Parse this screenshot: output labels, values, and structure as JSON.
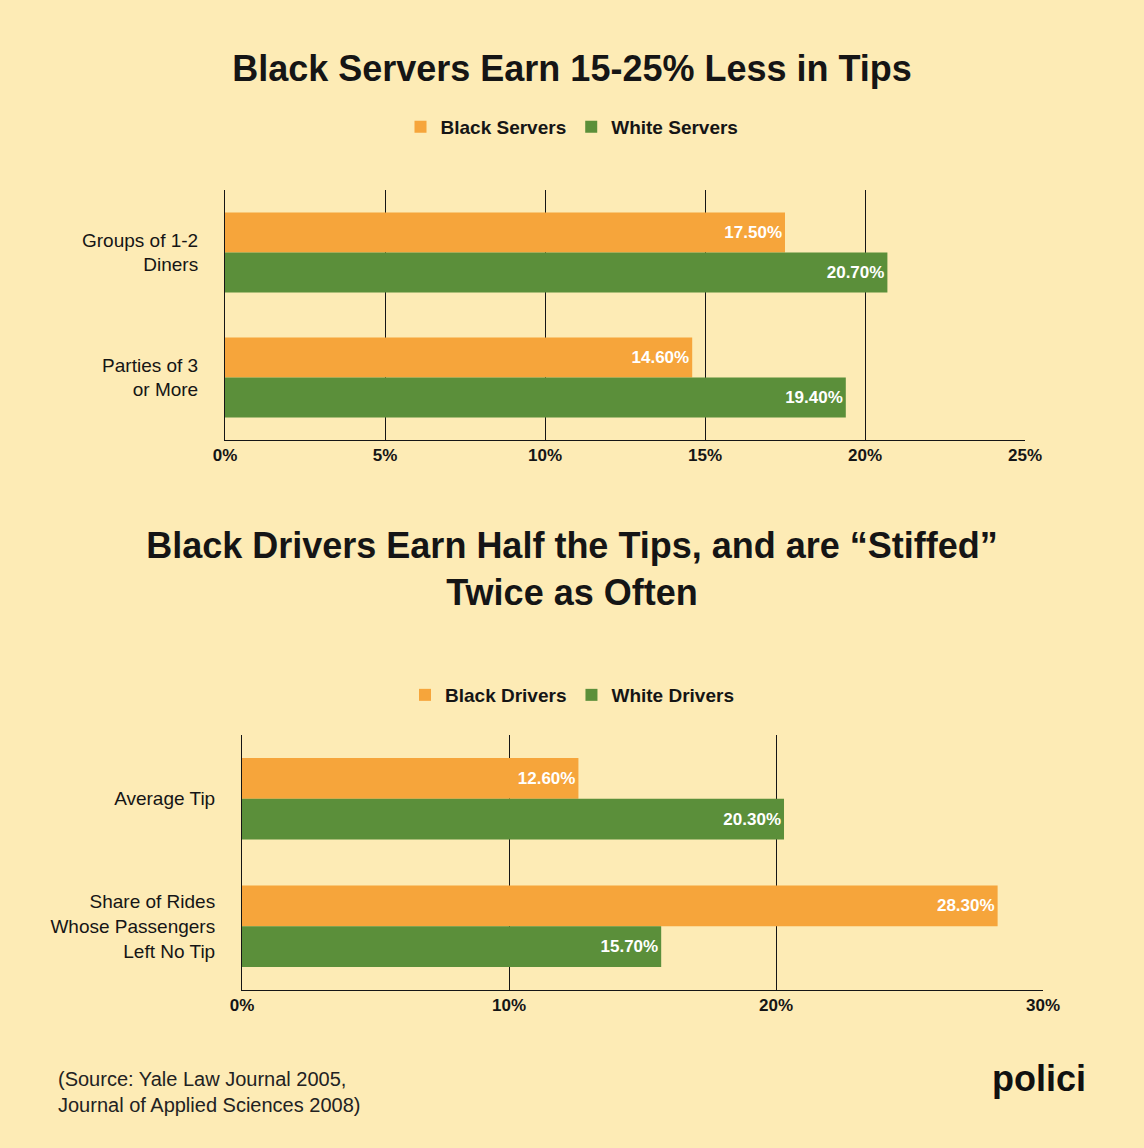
{
  "chart_data": [
    {
      "type": "bar",
      "title": "Black Servers Earn 15-25% Less in Tips",
      "orientation": "horizontal",
      "categories": [
        "Groups of 1-2 Diners",
        "Parties of 3 or More"
      ],
      "series": [
        {
          "name": "Black Servers",
          "color": "#f6a53b",
          "values": [
            17.5,
            14.6
          ],
          "value_labels": [
            "17.50%",
            "14.60%"
          ]
        },
        {
          "name": "White Servers",
          "color": "#5b8f3a",
          "values": [
            20.7,
            19.4
          ],
          "value_labels": [
            "20.70%",
            "19.40%"
          ]
        }
      ],
      "xlim": [
        0,
        25
      ],
      "xticks": [
        {
          "value": 0,
          "label": "0%"
        },
        {
          "value": 5,
          "label": "5%"
        },
        {
          "value": 10,
          "label": "10%"
        },
        {
          "value": 15,
          "label": "15%"
        },
        {
          "value": 20,
          "label": "20%"
        },
        {
          "value": 25,
          "label": "25%"
        }
      ],
      "grid": true,
      "legend": "top",
      "data_labels": true
    },
    {
      "type": "bar",
      "title": "Black Drivers Earn Half the Tips, and are “Stiffed” Twice as Often",
      "orientation": "horizontal",
      "categories": [
        "Average Tip",
        "Share of Rides Whose Passengers Left No Tip"
      ],
      "series": [
        {
          "name": "Black Drivers",
          "color": "#f6a53b",
          "values": [
            12.6,
            28.3
          ],
          "value_labels": [
            "12.60%",
            "28.30%"
          ]
        },
        {
          "name": "White Drivers",
          "color": "#5b8f3a",
          "values": [
            20.3,
            15.7
          ],
          "value_labels": [
            "20.30%",
            "15.70%"
          ]
        }
      ],
      "xlim": [
        0,
        30
      ],
      "xticks": [
        {
          "value": 0,
          "label": "0%"
        },
        {
          "value": 10,
          "label": "10%"
        },
        {
          "value": 20,
          "label": "20%"
        },
        {
          "value": 30,
          "label": "30%"
        }
      ],
      "grid": true,
      "legend": "top",
      "data_labels": true
    }
  ],
  "footer": {
    "source": "(Source: Yale Law Journal 2005, Journal of Applied Sciences 2008)",
    "brand": "polici"
  }
}
